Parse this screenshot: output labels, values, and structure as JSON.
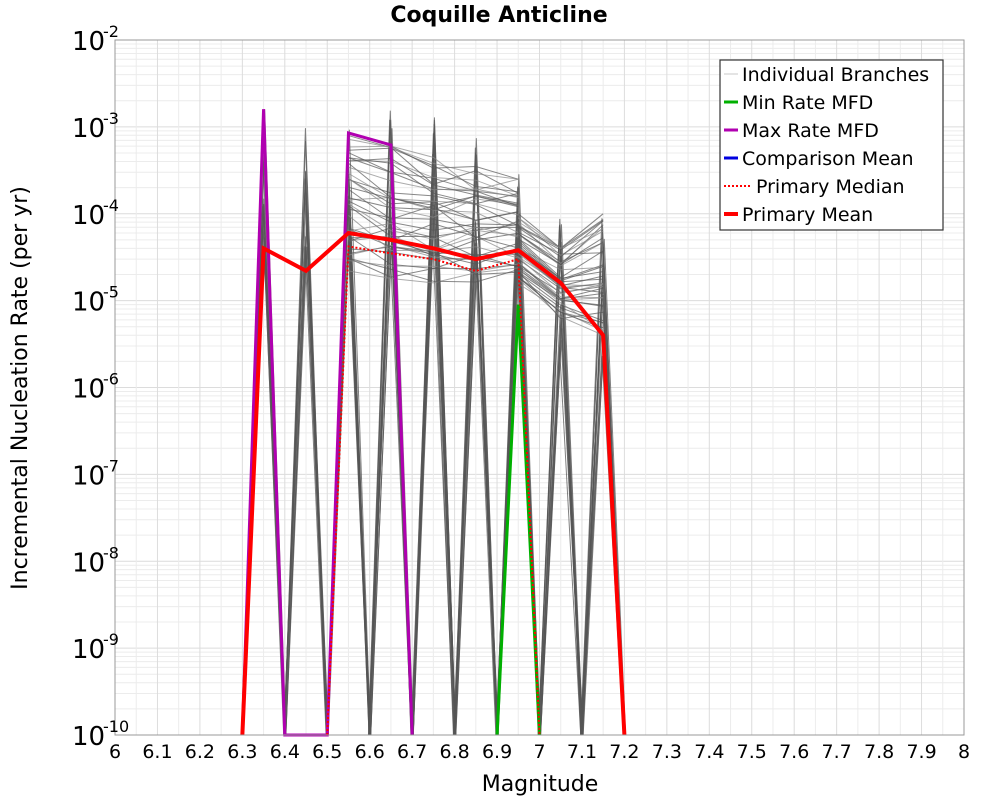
{
  "chart_data": {
    "type": "line",
    "title": "Coquille Anticline",
    "xlabel": "Magnitude",
    "ylabel": "Incremental Nucleation Rate (per yr)",
    "xlim": [
      6,
      8
    ],
    "ylim_log10": [
      -10,
      -2
    ],
    "y_scale": "log",
    "grid": true,
    "legend_position": "top-right",
    "x_ticks": [
      "6",
      "6.1",
      "6.2",
      "6.3",
      "6.4",
      "6.5",
      "6.6",
      "6.7",
      "6.8",
      "6.9",
      "7",
      "7.1",
      "7.2",
      "7.3",
      "7.4",
      "7.5",
      "7.6",
      "7.7",
      "7.8",
      "7.9",
      "8"
    ],
    "y_ticks": [
      {
        "base": "10",
        "exp": "-10",
        "log10": -10
      },
      {
        "base": "10",
        "exp": "-9",
        "log10": -9
      },
      {
        "base": "10",
        "exp": "-8",
        "log10": -8
      },
      {
        "base": "10",
        "exp": "-7",
        "log10": -7
      },
      {
        "base": "10",
        "exp": "-6",
        "log10": -6
      },
      {
        "base": "10",
        "exp": "-5",
        "log10": -5
      },
      {
        "base": "10",
        "exp": "-4",
        "log10": -4
      },
      {
        "base": "10",
        "exp": "-3",
        "log10": -3
      },
      {
        "base": "10",
        "exp": "-2",
        "log10": -2
      }
    ],
    "legend": [
      {
        "name": "Individual Branches",
        "color": "#c8c8c8",
        "style": "thin"
      },
      {
        "name": "Min Rate MFD",
        "color": "#00b000",
        "style": "solid"
      },
      {
        "name": "Max Rate MFD",
        "color": "#b000b0",
        "style": "solid"
      },
      {
        "name": "Comparison Mean",
        "color": "#0000e0",
        "style": "solid"
      },
      {
        "name": "Primary Median",
        "color": "#ff0000",
        "style": "dotted"
      },
      {
        "name": "Primary Mean",
        "color": "#ff0000",
        "style": "thick"
      }
    ],
    "series": [
      {
        "name": "Primary Mean",
        "color": "#ff0000",
        "points": [
          [
            6.3,
            1e-10
          ],
          [
            6.35,
            4e-05
          ],
          [
            6.45,
            2.2e-05
          ],
          [
            6.55,
            6e-05
          ],
          [
            6.65,
            5e-05
          ],
          [
            6.75,
            4e-05
          ],
          [
            6.85,
            3e-05
          ],
          [
            6.95,
            3.8e-05
          ],
          [
            7.05,
            1.6e-05
          ],
          [
            7.15,
            4e-06
          ],
          [
            7.2,
            1e-10
          ]
        ]
      },
      {
        "name": "Primary Median",
        "color": "#ff0000",
        "points": [
          [
            6.5,
            1e-10
          ],
          [
            6.55,
            4.2e-05
          ],
          [
            6.65,
            3.5e-05
          ],
          [
            6.75,
            3e-05
          ],
          [
            6.85,
            2.2e-05
          ],
          [
            6.95,
            3e-05
          ],
          [
            7.0,
            1e-10
          ]
        ]
      },
      {
        "name": "Max Rate MFD",
        "color": "#b000b0",
        "points": [
          [
            6.3,
            1e-10
          ],
          [
            6.35,
            0.0016
          ],
          [
            6.4,
            1e-10
          ],
          [
            6.5,
            1e-10
          ],
          [
            6.55,
            0.00085
          ],
          [
            6.65,
            0.00062
          ],
          [
            6.7,
            1e-10
          ]
        ]
      },
      {
        "name": "Min Rate MFD",
        "color": "#00b000",
        "points": [
          [
            6.9,
            1e-10
          ],
          [
            6.95,
            9e-06
          ],
          [
            7.0,
            1e-10
          ]
        ]
      }
    ],
    "branch_spikes": [
      {
        "x": 6.35,
        "top": 0.0016
      },
      {
        "x": 6.45,
        "top": 0.0012
      },
      {
        "x": 6.55,
        "top": 0.0014
      },
      {
        "x": 6.65,
        "top": 0.0016
      },
      {
        "x": 6.75,
        "top": 0.0013
      },
      {
        "x": 6.85,
        "top": 0.0012
      },
      {
        "x": 6.95,
        "top": 0.0006
      },
      {
        "x": 7.05,
        "top": 0.0001
      },
      {
        "x": 7.15,
        "top": 9e-05
      }
    ],
    "branch_bands": [
      {
        "x": [
          6.55,
          6.65,
          6.75,
          6.85,
          6.95
        ],
        "low": [
          2.2e-05,
          1.8e-05,
          1.6e-05,
          1.5e-05,
          2e-05
        ],
        "high": [
          0.00085,
          0.0006,
          0.00045,
          0.00035,
          0.00025
        ]
      },
      {
        "x": [
          6.95,
          7.05,
          7.15
        ],
        "low": [
          1.5e-05,
          6e-06,
          4e-06
        ],
        "high": [
          0.0001,
          4e-05,
          0.0001
        ]
      }
    ]
  }
}
